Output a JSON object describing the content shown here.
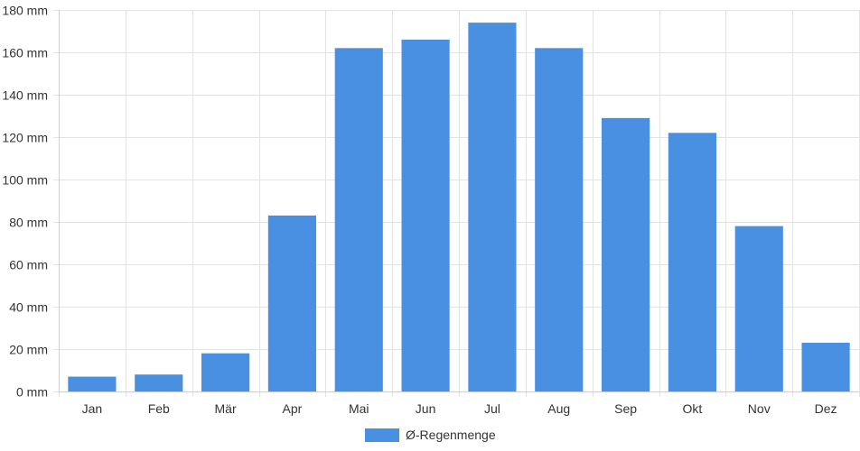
{
  "chart_data": {
    "type": "bar",
    "categories": [
      "Jan",
      "Feb",
      "Mär",
      "Apr",
      "Mai",
      "Jun",
      "Jul",
      "Aug",
      "Sep",
      "Okt",
      "Nov",
      "Dez"
    ],
    "series": [
      {
        "name": "Ø-Regenmenge",
        "values": [
          7,
          8,
          18,
          83,
          162,
          166,
          174,
          162,
          129,
          122,
          78,
          23
        ],
        "color": "#4a90e2"
      }
    ],
    "ylim": [
      0,
      180
    ],
    "yticks": [
      0,
      20,
      40,
      60,
      80,
      100,
      120,
      140,
      160,
      180
    ],
    "y_unit_suffix": " mm",
    "grid": true,
    "legend_position": "bottom-center"
  }
}
